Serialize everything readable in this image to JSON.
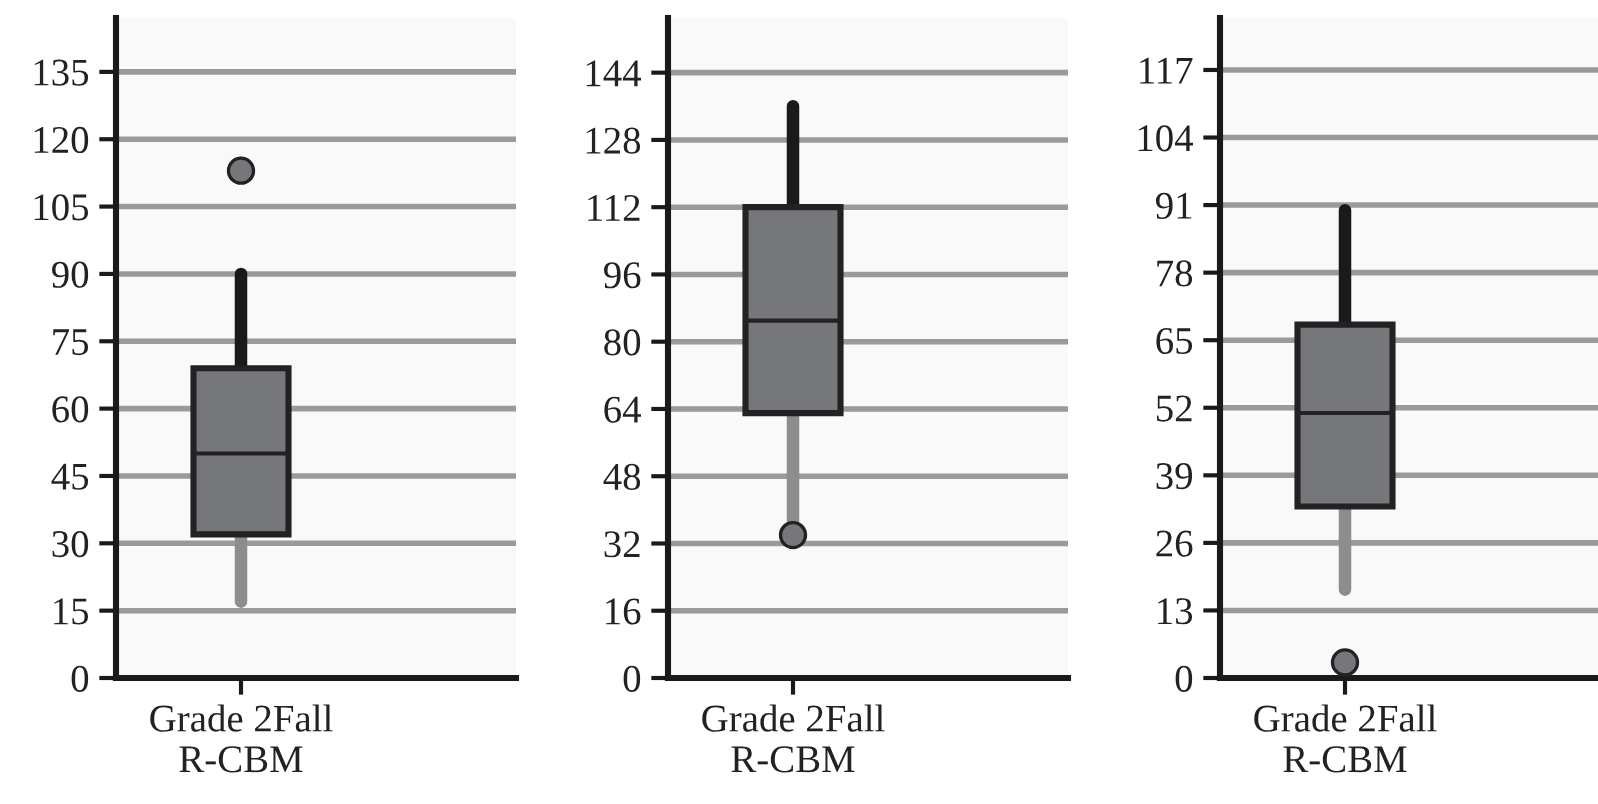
{
  "chart_data": [
    {
      "type": "box",
      "categories": [
        "Grade 2Fall\nR-CBM"
      ],
      "colors": [
        "#76777a"
      ],
      "boxes": [
        {
          "low": 17,
          "q1": 32,
          "median": 50,
          "q3": 69,
          "high": 90,
          "outliers": [
            113
          ]
        }
      ],
      "ylim": [
        0,
        147
      ],
      "yticks": [
        0,
        15,
        30,
        45,
        60,
        75,
        90,
        105,
        120,
        135
      ],
      "grid": "y"
    },
    {
      "type": "box",
      "categories": [
        "Grade 2Fall\nR-CBM"
      ],
      "colors": [
        "#76777a"
      ],
      "boxes": [
        {
          "low": 35,
          "q1": 63,
          "median": 85,
          "q3": 112,
          "high": 136,
          "outliers": [
            34
          ]
        }
      ],
      "ylim": [
        0,
        157
      ],
      "yticks": [
        0,
        16,
        32,
        48,
        64,
        80,
        96,
        112,
        128,
        144
      ],
      "grid": "y"
    },
    {
      "type": "box",
      "categories": [
        "Grade 2Fall\nR-CBM"
      ],
      "colors": [
        "#76777a"
      ],
      "boxes": [
        {
          "low": 17,
          "q1": 33,
          "median": 51,
          "q3": 68,
          "high": 90,
          "outliers": [
            3
          ]
        }
      ],
      "ylim": [
        0,
        127
      ],
      "yticks": [
        0,
        13,
        26,
        39,
        52,
        65,
        78,
        91,
        104,
        117
      ],
      "grid": "y"
    }
  ]
}
